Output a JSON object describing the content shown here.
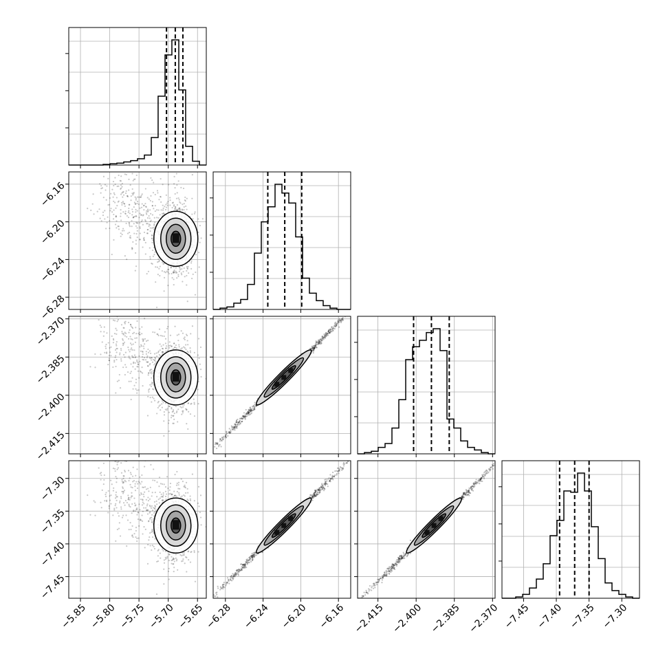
{
  "chart_data": {
    "type": "corner",
    "grid": true,
    "variables": [
      {
        "range": [
          -5.87,
          -5.635
        ],
        "ticks": [
          "−5.85",
          "−5.80",
          "−5.75",
          "−5.70",
          "−5.65"
        ],
        "tick_values": [
          -5.85,
          -5.8,
          -5.75,
          -5.7,
          -5.65
        ],
        "quantiles": [
          -5.703,
          -5.688,
          -5.675
        ],
        "peak": -5.687,
        "sigma": 0.014,
        "skew_left": true
      },
      {
        "range": [
          -6.293,
          -6.147
        ],
        "ticks": [
          "−6.28",
          "−6.24",
          "−6.20",
          "−6.16"
        ],
        "tick_values": [
          -6.28,
          -6.24,
          -6.2,
          -6.16
        ],
        "quantiles": [
          -6.235,
          -6.217,
          -6.199
        ],
        "peak": -6.218,
        "sigma": 0.019
      },
      {
        "range": [
          -2.423,
          -2.369
        ],
        "ticks": [
          "−2.415",
          "−2.400",
          "−2.385",
          "−2.370"
        ],
        "tick_values": [
          -2.415,
          -2.4,
          -2.385,
          -2.37
        ],
        "quantiles": [
          -2.401,
          -2.394,
          -2.387
        ],
        "peak": -2.393,
        "sigma": 0.0065
      },
      {
        "range": [
          -7.483,
          -7.273
        ],
        "ticks": [
          "−7.45",
          "−7.40",
          "−7.35",
          "−7.30"
        ],
        "tick_values": [
          -7.45,
          -7.4,
          -7.35,
          -7.3
        ],
        "quantiles": [
          -7.395,
          -7.372,
          -7.35
        ],
        "peak": -7.372,
        "sigma": 0.022
      }
    ],
    "histograms": [
      {
        "var": 0,
        "bins": [
          -5.87,
          -5.8583,
          -5.8465,
          -5.8348,
          -5.823,
          -5.8113,
          -5.7995,
          -5.7878,
          -5.776,
          -5.7643,
          -5.7525,
          -5.7408,
          -5.729,
          -5.7173,
          -5.7055,
          -5.6938,
          -5.682,
          -5.6703,
          -5.6585,
          -5.6468,
          -5.635
        ],
        "counts": [
          0.0,
          0.0,
          0.0,
          0.0,
          0.0,
          0.005,
          0.01,
          0.015,
          0.025,
          0.035,
          0.05,
          0.08,
          0.22,
          0.55,
          0.88,
          1.0,
          0.6,
          0.15,
          0.03,
          0.0
        ]
      },
      {
        "var": 1,
        "bins": [
          -6.293,
          -6.2857,
          -6.2784,
          -6.2711,
          -6.2638,
          -6.2565,
          -6.2492,
          -6.2419,
          -6.2346,
          -6.2273,
          -6.22,
          -6.2127,
          -6.2054,
          -6.1981,
          -6.1908,
          -6.1835,
          -6.1762,
          -6.1689,
          -6.1616,
          -6.1543,
          -6.147
        ],
        "counts": [
          0.0,
          0.01,
          0.02,
          0.05,
          0.08,
          0.2,
          0.45,
          0.7,
          0.82,
          1.0,
          0.93,
          0.85,
          0.58,
          0.25,
          0.13,
          0.07,
          0.03,
          0.01,
          0.0,
          0.0
        ]
      },
      {
        "var": 2,
        "bins": [
          -2.423,
          -2.4203,
          -2.4176,
          -2.4149,
          -2.4122,
          -2.4095,
          -2.4068,
          -2.4041,
          -2.4014,
          -2.3987,
          -2.396,
          -2.3933,
          -2.3906,
          -2.3879,
          -2.3852,
          -2.3825,
          -2.3798,
          -2.3771,
          -2.3744,
          -2.3717,
          -2.369
        ],
        "counts": [
          0.0,
          0.01,
          0.02,
          0.05,
          0.08,
          0.2,
          0.42,
          0.73,
          0.83,
          0.88,
          0.94,
          0.97,
          0.8,
          0.27,
          0.2,
          0.1,
          0.05,
          0.03,
          0.01,
          0.0
        ]
      },
      {
        "var": 3,
        "bins": [
          -7.483,
          -7.4725,
          -7.462,
          -7.4515,
          -7.441,
          -7.4305,
          -7.42,
          -7.4095,
          -7.399,
          -7.3885,
          -7.378,
          -7.3675,
          -7.357,
          -7.3465,
          -7.336,
          -7.3255,
          -7.315,
          -7.3045,
          -7.294,
          -7.2835,
          -7.273
        ],
        "counts": [
          0.0,
          0.0,
          0.01,
          0.03,
          0.08,
          0.15,
          0.27,
          0.49,
          0.61,
          0.84,
          0.83,
          0.98,
          0.84,
          0.56,
          0.31,
          0.12,
          0.06,
          0.03,
          0.01,
          0.0
        ]
      }
    ],
    "panels": [
      {
        "row": 1,
        "col": 0,
        "corr": -0.45,
        "spread": 0.7
      },
      {
        "row": 2,
        "col": 0,
        "corr": -0.45,
        "spread": 0.7
      },
      {
        "row": 2,
        "col": 1,
        "corr": 0.99,
        "spread": 1.0
      },
      {
        "row": 3,
        "col": 0,
        "corr": -0.45,
        "spread": 0.7
      },
      {
        "row": 3,
        "col": 1,
        "corr": 0.99,
        "spread": 1.0
      },
      {
        "row": 3,
        "col": 2,
        "corr": 0.99,
        "spread": 1.0
      }
    ],
    "y_tick_label_vars": [
      1,
      2,
      3
    ]
  }
}
